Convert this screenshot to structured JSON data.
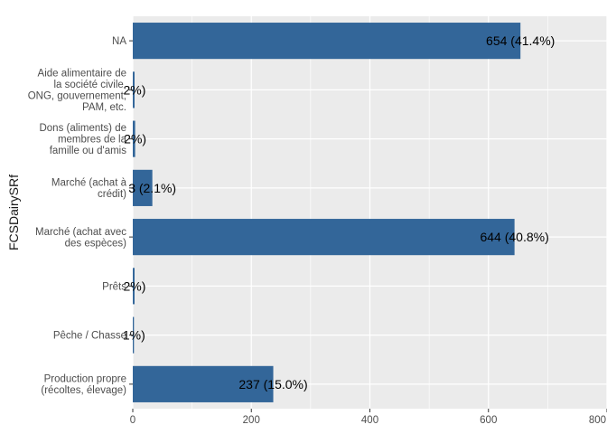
{
  "chart_data": {
    "type": "bar",
    "orientation": "horizontal",
    "title": "",
    "xlabel": "",
    "ylabel": "FCSDairySRf",
    "xlim": [
      0,
      800
    ],
    "x_ticks": [
      "0",
      "200",
      "400",
      "600",
      "800"
    ],
    "grid": true,
    "legend": "none",
    "bar_color": "#336699",
    "panel_color": "#ebebeb",
    "categories": [
      "NA",
      "Aide alimentaire de\nla société civile,\nONG, gouvernement,\nPAM, etc.",
      "Dons (aliments) de\nmembres de la\nfamille ou d'amis",
      "Marché (achat à\ncrédit)",
      "Marché (achat avec\ndes espèces)",
      "Prêts",
      "Pêche / Chasse",
      "Production propre\n(récoltes, élevage)"
    ],
    "values": [
      654,
      3,
      4,
      33,
      644,
      3,
      2,
      237
    ],
    "labels": [
      "654 (41.4%)",
      "2%)",
      "2%)",
      "3 (2.1%)",
      "644 (40.8%)",
      "2%)",
      "1%)",
      "237 (15.0%)"
    ]
  }
}
